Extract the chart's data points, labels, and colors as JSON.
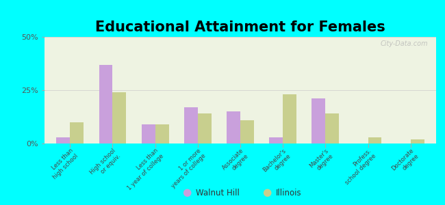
{
  "title": "Educational Attainment for Females",
  "categories": [
    "Less than\nhigh school",
    "High school\nor equiv.",
    "Less than\n1 year of college",
    "1 or more\nyears of college",
    "Associate\ndegree",
    "Bachelor's\ndegree",
    "Master's\ndegree",
    "Profess.\nschool degree",
    "Doctorate\ndegree"
  ],
  "walnut_hill": [
    3,
    37,
    9,
    17,
    15,
    3,
    21,
    0,
    0
  ],
  "illinois": [
    10,
    24,
    9,
    14,
    11,
    23,
    14,
    3,
    2
  ],
  "walnut_hill_color": "#c9a0dc",
  "illinois_color": "#c8cf8e",
  "background_color": "#00ffff",
  "ylim": [
    0,
    50
  ],
  "yticks": [
    0,
    25,
    50
  ],
  "ytick_labels": [
    "0%",
    "25%",
    "50%"
  ],
  "legend_walnut_hill": "Walnut Hill",
  "legend_illinois": "Illinois",
  "title_fontsize": 15,
  "watermark": "City-Data.com"
}
